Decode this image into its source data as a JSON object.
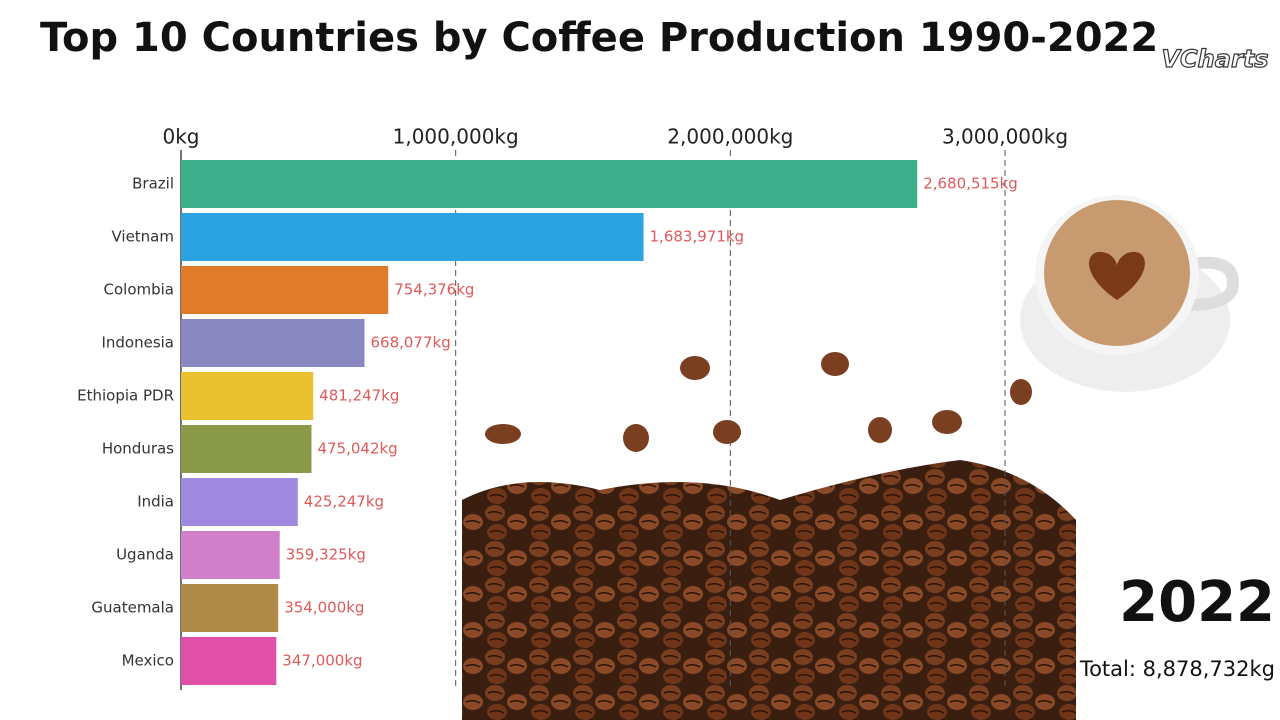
{
  "logo": "VCharts",
  "chart_data": {
    "type": "bar",
    "orientation": "horizontal",
    "title": "Top 10 Countries by Coffee Production 1990-2022",
    "categories": [
      "Brazil",
      "Vietnam",
      "Colombia",
      "Indonesia",
      "Ethiopia PDR",
      "Honduras",
      "India",
      "Uganda",
      "Guatemala",
      "Mexico"
    ],
    "values": [
      2680515,
      1683971,
      754376,
      668077,
      481247,
      475042,
      425247,
      359325,
      354000,
      347000
    ],
    "value_labels": [
      "2,680,515kg",
      "1,683,971kg",
      "754,376kg",
      "668,077kg",
      "481,247kg",
      "475,042kg",
      "425,247kg",
      "359,325kg",
      "354,000kg",
      "347,000kg"
    ],
    "colors": [
      "#3daf8a",
      "#2aa3e0",
      "#e07b2a",
      "#8a88c0",
      "#e8c030",
      "#8a9a48",
      "#a08ae0",
      "#d080c8",
      "#b08a48",
      "#e050a8"
    ],
    "xlim": [
      0,
      3000000
    ],
    "xticks": [
      {
        "value": 0,
        "label": "0kg"
      },
      {
        "value": 1000000,
        "label": "1,000,000kg"
      },
      {
        "value": 2000000,
        "label": "2,000,000kg"
      },
      {
        "value": 3000000,
        "label": "3,000,000kg"
      }
    ],
    "grid": true,
    "year": "2022",
    "total": "Total: 8,878,732kg"
  }
}
